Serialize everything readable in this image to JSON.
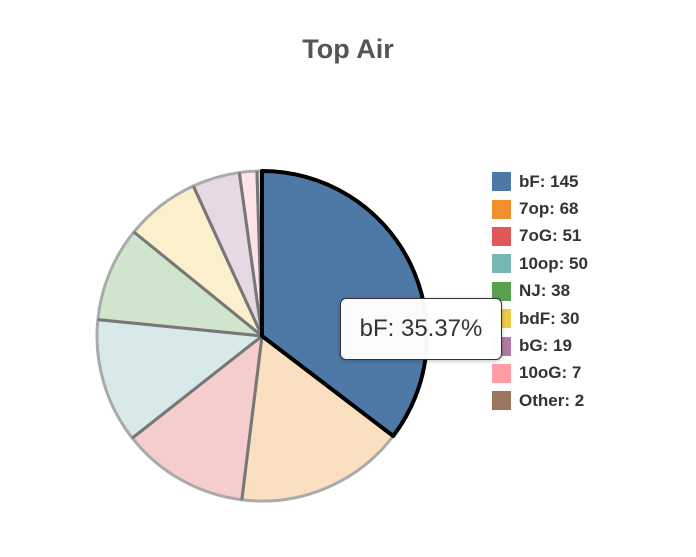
{
  "chart_data": {
    "type": "pie",
    "title": "Top Air",
    "legend_position": "right",
    "slices": [
      {
        "label": "bF",
        "value": 145,
        "fill": "#4e79a7",
        "stroke": "#000000"
      },
      {
        "label": "7op",
        "value": 68,
        "fill": "#fbdfc1",
        "stroke": "#aaaaaa"
      },
      {
        "label": "7oG",
        "value": 51,
        "fill": "#f5cdcd",
        "stroke": "#aaaaaa"
      },
      {
        "label": "10op",
        "value": 50,
        "fill": "#d8e9ea",
        "stroke": "#aaaaaa"
      },
      {
        "label": "NJ",
        "value": 38,
        "fill": "#cfe5cc",
        "stroke": "#aaaaaa"
      },
      {
        "label": "bdF",
        "value": 30,
        "fill": "#fcf0cc",
        "stroke": "#aaaaaa"
      },
      {
        "label": "bG",
        "value": 19,
        "fill": "#e6d9e4",
        "stroke": "#aaaaaa"
      },
      {
        "label": "10oG",
        "value": 7,
        "fill": "#fde3e5",
        "stroke": "#aaaaaa"
      },
      {
        "label": "Other",
        "value": 2,
        "fill": "#e4dad3",
        "stroke": "#aaaaaa"
      }
    ],
    "legend": [
      {
        "label": "bF: 145",
        "color": "#4e79a7"
      },
      {
        "label": "7op: 68",
        "color": "#f28e2b"
      },
      {
        "label": "7oG: 51",
        "color": "#e15759"
      },
      {
        "label": "10op: 50",
        "color": "#76b7b2"
      },
      {
        "label": "NJ: 38",
        "color": "#59a14f"
      },
      {
        "label": "bdF: 30",
        "color": "#edc948"
      },
      {
        "label": "bG: 19",
        "color": "#b07aa1"
      },
      {
        "label": "10oG: 7",
        "color": "#ff9da7"
      },
      {
        "label": "Other: 2",
        "color": "#9c755f"
      }
    ],
    "tooltip": {
      "text": "bF: 35.37%"
    }
  }
}
